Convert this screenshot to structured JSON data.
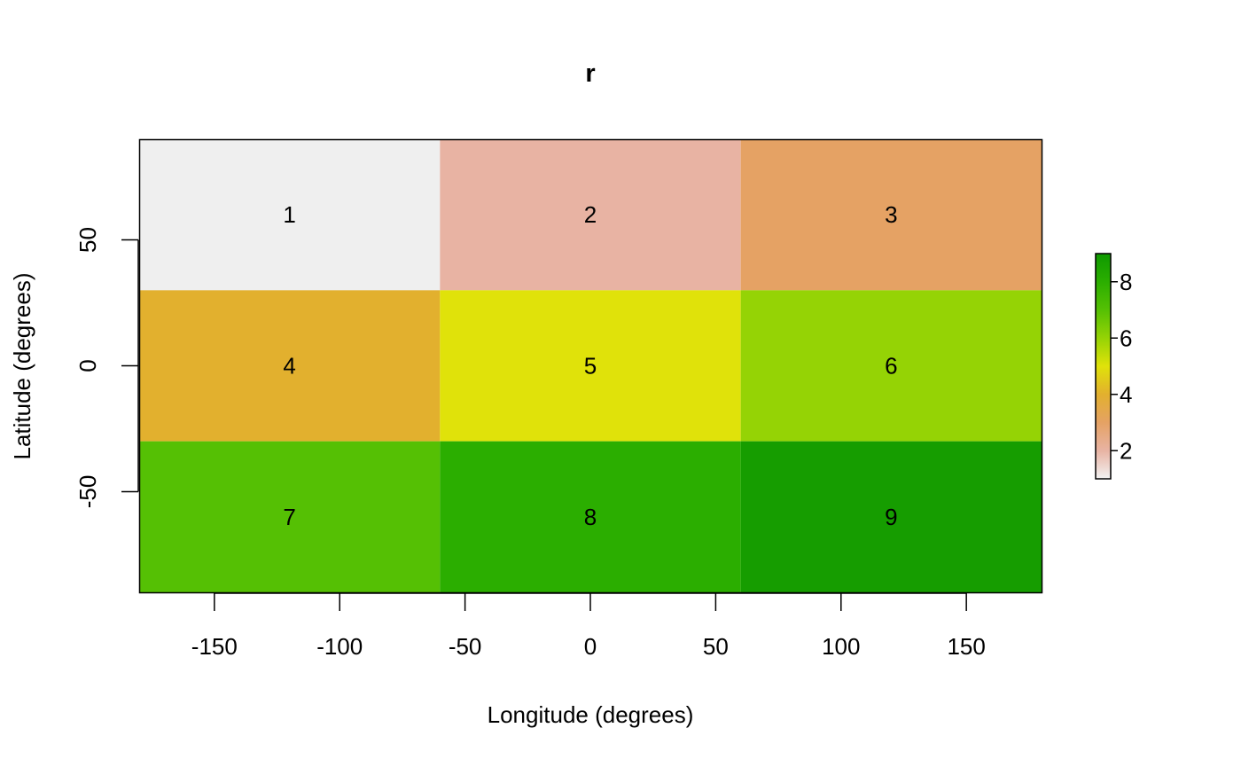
{
  "chart_data": {
    "type": "heatmap",
    "title": "r",
    "xlabel": "Longitude (degrees)",
    "ylabel": "Latitude (degrees)",
    "xlim": [
      -180,
      180
    ],
    "ylim": [
      -90,
      90
    ],
    "x_ticks": [
      -150,
      -100,
      -50,
      0,
      50,
      100,
      150
    ],
    "y_ticks": [
      -50,
      0,
      50
    ],
    "x_tick_labels": [
      "-150",
      "-100",
      "-50",
      "0",
      "50",
      "100",
      "150"
    ],
    "y_tick_labels": [
      "-50",
      "0",
      "50"
    ],
    "x_edges": [
      -180,
      -60,
      60,
      180
    ],
    "y_edges": [
      90,
      30,
      -30,
      -90
    ],
    "cells": [
      [
        1,
        2,
        3
      ],
      [
        4,
        5,
        6
      ],
      [
        7,
        8,
        9
      ]
    ],
    "cell_labels": [
      [
        "1",
        "2",
        "3"
      ],
      [
        "4",
        "5",
        "6"
      ],
      [
        "7",
        "8",
        "9"
      ]
    ],
    "cell_colors": [
      [
        "#efefef",
        "#e8b3a3",
        "#e5a264"
      ],
      [
        "#e2b02e",
        "#e0e20a",
        "#95d305"
      ],
      [
        "#55c004",
        "#2bae00",
        "#169d00"
      ]
    ],
    "legend": {
      "min": 1,
      "max": 9,
      "ticks": [
        2,
        4,
        6,
        8
      ],
      "tick_labels": [
        "2",
        "4",
        "6",
        "8"
      ],
      "placement": "right",
      "color_stops": [
        {
          "value": 1,
          "color": "#f2f2f2"
        },
        {
          "value": 2,
          "color": "#e8b3a3"
        },
        {
          "value": 3,
          "color": "#e5a264"
        },
        {
          "value": 4,
          "color": "#e2b02e"
        },
        {
          "value": 5,
          "color": "#e0e20a"
        },
        {
          "value": 6,
          "color": "#95d305"
        },
        {
          "value": 7,
          "color": "#55c004"
        },
        {
          "value": 8,
          "color": "#2bae00"
        },
        {
          "value": 9,
          "color": "#0e9900"
        }
      ]
    },
    "grid": false
  }
}
